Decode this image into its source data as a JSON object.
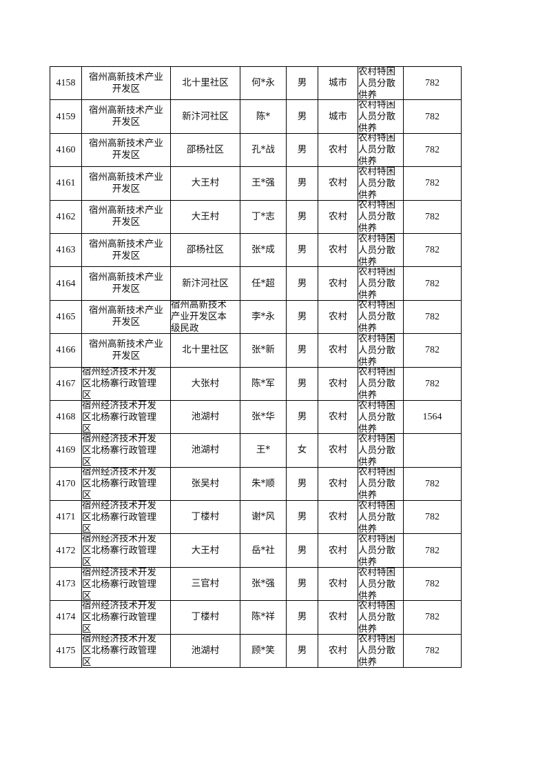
{
  "table": {
    "rows": [
      [
        "4158",
        "宿州高新技术产业开发区",
        "北十里社区",
        "何*永",
        "男",
        "城市",
        "农村特困人员分散供养",
        "782"
      ],
      [
        "4159",
        "宿州高新技术产业开发区",
        "新汴河社区",
        "陈*",
        "男",
        "城市",
        "农村特困人员分散供养",
        "782"
      ],
      [
        "4160",
        "宿州高新技术产业开发区",
        "邵杨社区",
        "孔*战",
        "男",
        "农村",
        "农村特困人员分散供养",
        "782"
      ],
      [
        "4161",
        "宿州高新技术产业开发区",
        "大王村",
        "王*强",
        "男",
        "农村",
        "农村特困人员分散供养",
        "782"
      ],
      [
        "4162",
        "宿州高新技术产业开发区",
        "大王村",
        "丁*志",
        "男",
        "农村",
        "农村特困人员分散供养",
        "782"
      ],
      [
        "4163",
        "宿州高新技术产业开发区",
        "邵杨社区",
        "张*成",
        "男",
        "农村",
        "农村特困人员分散供养",
        "782"
      ],
      [
        "4164",
        "宿州高新技术产业开发区",
        "新汴河社区",
        "任*超",
        "男",
        "农村",
        "农村特困人员分散供养",
        "782"
      ],
      [
        "4165",
        "宿州高新技术产业开发区",
        "宿州高新技术产业开发区本级民政",
        "李*永",
        "男",
        "农村",
        "农村特困人员分散供养",
        "782"
      ],
      [
        "4166",
        "宿州高新技术产业开发区",
        "北十里社区",
        "张*新",
        "男",
        "农村",
        "农村特困人员分散供养",
        "782"
      ],
      [
        "4167",
        "宿州经济技术开发区北杨寨行政管理区",
        "大张村",
        "陈*军",
        "男",
        "农村",
        "农村特困人员分散供养",
        "782"
      ],
      [
        "4168",
        "宿州经济技术开发区北杨寨行政管理区",
        "池湖村",
        "张*华",
        "男",
        "农村",
        "农村特困人员分散供养",
        "1564"
      ],
      [
        "4169",
        "宿州经济技术开发区北杨寨行政管理区",
        "池湖村",
        "王*",
        "女",
        "农村",
        "农村特困人员分散供养",
        ""
      ],
      [
        "4170",
        "宿州经济技术开发区北杨寨行政管理区",
        "张吴村",
        "朱*顺",
        "男",
        "农村",
        "农村特困人员分散供养",
        "782"
      ],
      [
        "4171",
        "宿州经济技术开发区北杨寨行政管理区",
        "丁楼村",
        "谢*风",
        "男",
        "农村",
        "农村特困人员分散供养",
        "782"
      ],
      [
        "4172",
        "宿州经济技术开发区北杨寨行政管理区",
        "大王村",
        "岳*社",
        "男",
        "农村",
        "农村特困人员分散供养",
        "782"
      ],
      [
        "4173",
        "宿州经济技术开发区北杨寨行政管理区",
        "三官村",
        "张*强",
        "男",
        "农村",
        "农村特困人员分散供养",
        "782"
      ],
      [
        "4174",
        "宿州经济技术开发区北杨寨行政管理区",
        "丁楼村",
        "陈*祥",
        "男",
        "农村",
        "农村特困人员分散供养",
        "782"
      ],
      [
        "4175",
        "宿州经济技术开发区北杨寨行政管理区",
        "池湖村",
        "顾*笑",
        "男",
        "农村",
        "农村特困人员分散供养",
        "782"
      ]
    ]
  }
}
